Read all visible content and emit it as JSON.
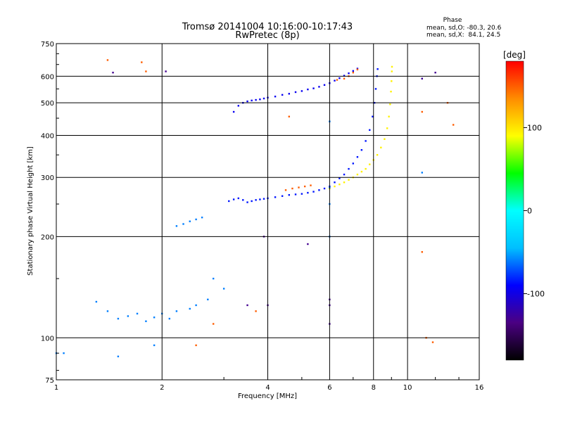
{
  "chart_data": {
    "type": "scatter",
    "title": "Tromsø 20141004 10:16:00-10:17:43",
    "subtitle": "RwPretec (8p)",
    "xlabel": "Frequency [MHz]",
    "ylabel": "Stationary phase Virtual Height [km]",
    "x_scale": "log",
    "y_scale": "log",
    "xlim": [
      1,
      16
    ],
    "ylim": [
      75,
      750
    ],
    "x_ticks": [
      "1",
      "2",
      "4",
      "6",
      "8",
      "10",
      "16"
    ],
    "x_tick_values": [
      1,
      2,
      4,
      6,
      8,
      10,
      16
    ],
    "y_ticks": [
      "75",
      "100",
      "200",
      "300",
      "400",
      "500",
      "600",
      "750"
    ],
    "y_tick_values": [
      75,
      100,
      200,
      300,
      400,
      500,
      600,
      750
    ],
    "grid": true,
    "stats": {
      "header": "Phase",
      "line_o": "mean, sd,O: -80.3, 20.6",
      "line_x": "mean, sd,X:  84.1, 24.5"
    },
    "colorbar": {
      "label": "[deg]",
      "ticks": [
        "100",
        "0",
        "-100"
      ],
      "tick_values": [
        100,
        0,
        -100
      ],
      "range": [
        -180,
        180
      ],
      "colors": [
        "#000000",
        "#4b0082",
        "#0000ff",
        "#00bfff",
        "#00ffff",
        "#00ff00",
        "#ffff00",
        "#ff8c00",
        "#ff0000"
      ]
    },
    "series": [
      {
        "phase": -95,
        "points": [
          [
            3.2,
            470
          ],
          [
            3.3,
            490
          ],
          [
            3.4,
            500
          ],
          [
            3.5,
            505
          ],
          [
            3.6,
            508
          ],
          [
            3.7,
            510
          ],
          [
            3.8,
            512
          ],
          [
            3.9,
            515
          ],
          [
            4.0,
            518
          ],
          [
            4.2,
            522
          ],
          [
            4.4,
            528
          ],
          [
            4.6,
            532
          ],
          [
            4.8,
            538
          ],
          [
            5.0,
            542
          ],
          [
            5.2,
            548
          ],
          [
            5.4,
            552
          ],
          [
            5.6,
            558
          ],
          [
            5.8,
            565
          ],
          [
            6.0,
            572
          ],
          [
            6.2,
            582
          ],
          [
            6.4,
            592
          ],
          [
            6.6,
            602
          ],
          [
            6.8,
            612
          ],
          [
            7.0,
            622
          ],
          [
            7.2,
            632
          ]
        ]
      },
      {
        "phase": -85,
        "points": [
          [
            3.1,
            255
          ],
          [
            3.2,
            258
          ],
          [
            3.3,
            260
          ],
          [
            3.4,
            257
          ],
          [
            3.5,
            253
          ],
          [
            3.6,
            255
          ],
          [
            3.7,
            257
          ],
          [
            3.8,
            258
          ],
          [
            3.9,
            259
          ],
          [
            4.0,
            260
          ],
          [
            4.2,
            262
          ],
          [
            4.4,
            264
          ],
          [
            4.6,
            266
          ],
          [
            4.8,
            267
          ],
          [
            5.0,
            268
          ],
          [
            5.2,
            270
          ],
          [
            5.4,
            272
          ],
          [
            5.6,
            275
          ],
          [
            5.8,
            278
          ],
          [
            6.0,
            282
          ],
          [
            6.2,
            290
          ],
          [
            6.4,
            298
          ],
          [
            6.6,
            306
          ],
          [
            6.8,
            318
          ],
          [
            7.0,
            330
          ],
          [
            7.2,
            345
          ],
          [
            7.4,
            362
          ],
          [
            7.6,
            385
          ],
          [
            7.8,
            415
          ],
          [
            7.95,
            455
          ],
          [
            8.05,
            500
          ],
          [
            8.12,
            550
          ],
          [
            8.18,
            600
          ],
          [
            8.22,
            630
          ]
        ]
      },
      {
        "phase": 95,
        "points": [
          [
            6.0,
            278
          ],
          [
            6.2,
            282
          ],
          [
            6.4,
            286
          ],
          [
            6.6,
            290
          ],
          [
            6.8,
            295
          ],
          [
            7.0,
            300
          ],
          [
            7.2,
            306
          ],
          [
            7.4,
            312
          ],
          [
            7.6,
            318
          ],
          [
            7.8,
            328
          ],
          [
            8.0,
            338
          ],
          [
            8.2,
            350
          ],
          [
            8.4,
            368
          ],
          [
            8.6,
            390
          ],
          [
            8.75,
            420
          ],
          [
            8.85,
            455
          ],
          [
            8.92,
            495
          ],
          [
            8.97,
            540
          ],
          [
            9.0,
            580
          ],
          [
            9.02,
            620
          ],
          [
            9.03,
            640
          ]
        ]
      },
      {
        "phase": -60,
        "points": [
          [
            1.3,
            128
          ],
          [
            1.4,
            120
          ],
          [
            1.5,
            114
          ],
          [
            1.6,
            116
          ],
          [
            1.7,
            118
          ],
          [
            1.8,
            112
          ],
          [
            1.9,
            115
          ],
          [
            2.0,
            118
          ],
          [
            2.1,
            114
          ],
          [
            2.2,
            120
          ],
          [
            2.4,
            122
          ],
          [
            2.5,
            125
          ],
          [
            2.7,
            130
          ],
          [
            2.8,
            150
          ],
          [
            2.2,
            215
          ],
          [
            2.3,
            218
          ],
          [
            2.4,
            222
          ],
          [
            2.5,
            225
          ],
          [
            2.6,
            228
          ],
          [
            1.5,
            88
          ],
          [
            1.9,
            95
          ],
          [
            1.0,
            90
          ],
          [
            1.05,
            90
          ],
          [
            3.0,
            140
          ],
          [
            6.0,
            280
          ],
          [
            6.0,
            440
          ],
          [
            6.0,
            250
          ],
          [
            6.0,
            200
          ],
          [
            11.0,
            590
          ],
          [
            11.0,
            310
          ]
        ]
      },
      {
        "phase": 150,
        "points": [
          [
            4.5,
            275
          ],
          [
            4.7,
            278
          ],
          [
            4.9,
            280
          ],
          [
            5.1,
            282
          ],
          [
            5.3,
            284
          ],
          [
            6.6,
            590
          ],
          [
            6.8,
            600
          ],
          [
            7.0,
            615
          ],
          [
            7.2,
            628
          ],
          [
            1.4,
            670
          ],
          [
            1.8,
            620
          ],
          [
            4.6,
            455
          ],
          [
            3.7,
            120
          ],
          [
            2.8,
            110
          ],
          [
            11.0,
            180
          ],
          [
            11.0,
            470
          ],
          [
            13.5,
            430
          ],
          [
            13.0,
            500
          ],
          [
            11.8,
            97
          ],
          [
            11.3,
            100
          ],
          [
            6.3,
            585
          ],
          [
            1.75,
            660
          ],
          [
            2.5,
            95
          ]
        ]
      },
      {
        "phase": -130,
        "points": [
          [
            1.45,
            615
          ],
          [
            2.05,
            620
          ],
          [
            12.0,
            615
          ],
          [
            5.2,
            190
          ],
          [
            3.9,
            200
          ],
          [
            6.0,
            130
          ],
          [
            6.0,
            125
          ],
          [
            6.0,
            110
          ],
          [
            4.0,
            125
          ],
          [
            3.5,
            125
          ],
          [
            11.0,
            590
          ]
        ]
      }
    ]
  }
}
